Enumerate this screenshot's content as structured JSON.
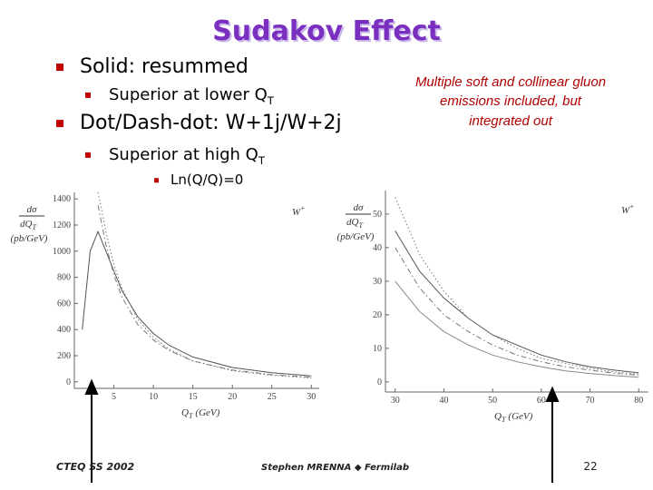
{
  "title": "Sudakov Effect",
  "bullets": [
    {
      "text": "Solid: resummed",
      "level": 1
    },
    {
      "text": "Superior at lower Q",
      "sub": "T",
      "level": 2
    },
    {
      "text": "Dot/Dash-dot: W+1j/W+2j",
      "level": 1
    },
    {
      "text": "Superior at high Q",
      "sub": "T",
      "level": 2
    },
    {
      "text": "Ln(Q/Q)=0",
      "level": 3
    }
  ],
  "note": [
    "Multiple soft and collinear gluon",
    "emissions included, but",
    "integrated out"
  ],
  "footer": {
    "left": "CTEQ SS 2002",
    "center": "Stephen MRENNA ◆ Fermilab",
    "page": "22"
  },
  "chart_data": [
    {
      "type": "line",
      "ylabel_num": "dσ",
      "ylabel_den": "dQ",
      "ylabel_den_sub": "T",
      "ylabel_unit": "(pb/GeV)",
      "xlabel": "Q",
      "xlabel_sub": "T",
      "xlabel_unit": "(GeV)",
      "annotation": "W",
      "annotation_sup": "+",
      "xlim": [
        0,
        31
      ],
      "xticks": [
        5,
        10,
        15,
        20,
        25,
        30
      ],
      "ylim": [
        -50,
        1450
      ],
      "yticks": [
        0,
        200,
        400,
        600,
        800,
        1000,
        1200,
        1400
      ],
      "x": [
        1,
        2,
        3,
        4,
        5,
        6,
        8,
        10,
        12,
        15,
        20,
        25,
        30
      ],
      "series": [
        {
          "color": "#555555",
          "dash": "solid",
          "values": [
            400,
            1000,
            1150,
            1000,
            850,
            700,
            500,
            370,
            280,
            190,
            110,
            70,
            45
          ]
        },
        {
          "color": "#777777",
          "dash": "dot",
          "values": [
            null,
            null,
            1450,
            1150,
            900,
            720,
            480,
            340,
            250,
            160,
            85,
            50,
            30
          ]
        },
        {
          "color": "#777777",
          "dash": "dashdot",
          "values": [
            null,
            null,
            1350,
            1050,
            820,
            650,
            440,
            320,
            240,
            160,
            90,
            55,
            35
          ]
        }
      ]
    },
    {
      "type": "line",
      "ylabel_num": "dσ",
      "ylabel_den": "dQ",
      "ylabel_den_sub": "T",
      "ylabel_unit": "(pb/GeV)",
      "xlabel": "Q",
      "xlabel_sub": "T",
      "xlabel_unit": "(GeV)",
      "annotation": "W",
      "annotation_sup": "+",
      "xlim": [
        28,
        82
      ],
      "xticks": [
        30,
        40,
        50,
        60,
        70,
        80
      ],
      "ylim": [
        -3,
        57
      ],
      "yticks": [
        0,
        10,
        20,
        30,
        40,
        50
      ],
      "x": [
        30,
        35,
        40,
        45,
        50,
        55,
        60,
        65,
        70,
        75,
        80
      ],
      "series": [
        {
          "color": "#555555",
          "dash": "solid",
          "values": [
            45,
            33,
            25,
            19,
            14,
            11,
            8,
            6,
            4.5,
            3.5,
            2.7
          ]
        },
        {
          "color": "#777777",
          "dash": "dot",
          "values": [
            55,
            38,
            27,
            19,
            14,
            10,
            7,
            5.5,
            4,
            3,
            2.3
          ]
        },
        {
          "color": "#777777",
          "dash": "dashdot",
          "values": [
            40,
            28,
            20,
            15,
            11,
            8,
            6,
            4.5,
            3.5,
            2.6,
            2
          ]
        },
        {
          "color": "#888888",
          "dash": "solid",
          "values": [
            30,
            21,
            15,
            11,
            8,
            6,
            4.5,
            3.3,
            2.5,
            1.9,
            1.4
          ]
        }
      ]
    }
  ]
}
